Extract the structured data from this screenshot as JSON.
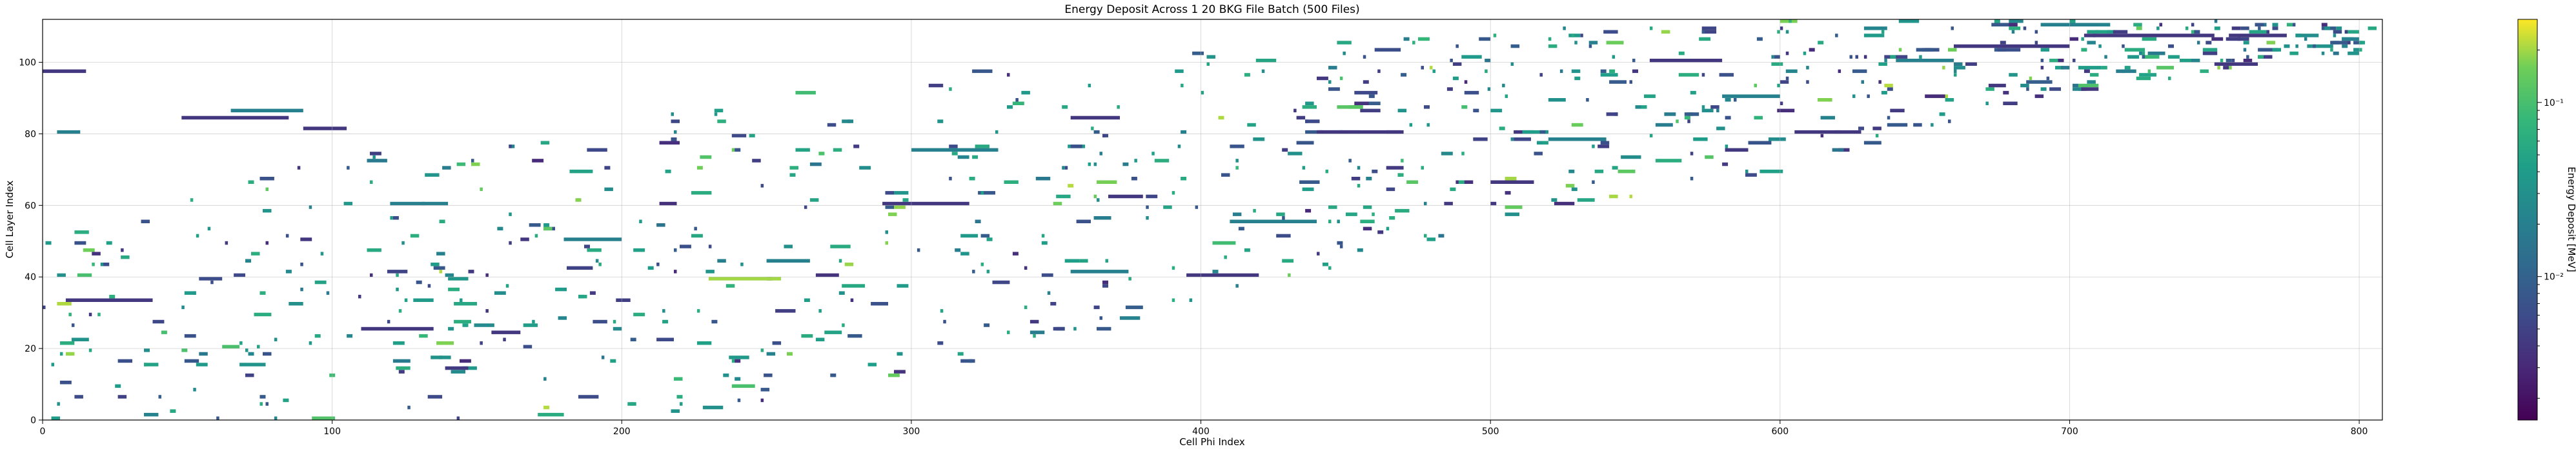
{
  "chart_data": {
    "type": "heatmap",
    "title": "Energy Deposit Across 1 20 BKG File Batch (500 Files)",
    "xlabel": "Cell Phi Index",
    "ylabel": "Cell Layer Index",
    "xlim": [
      0,
      808
    ],
    "ylim": [
      0,
      112
    ],
    "x_ticks": [
      "0",
      "100",
      "200",
      "300",
      "400",
      "500",
      "600",
      "700",
      "800"
    ],
    "y_ticks": [
      "0",
      "20",
      "40",
      "60",
      "80",
      "100"
    ],
    "grid": true,
    "colormap": "viridis",
    "colorbar": {
      "label": "Energy Deposit [MeV]",
      "scale": "log",
      "range": [
        0.0015,
        0.3
      ],
      "ticks": [
        {
          "value": 0.01,
          "label": "10⁻²"
        },
        {
          "value": 0.1,
          "label": "10⁻¹"
        }
      ]
    },
    "band": [
      {
        "x": 0,
        "ymin": 0,
        "ymax": 50
      },
      {
        "x": 100,
        "ymin": 0,
        "ymax": 75
      },
      {
        "x": 200,
        "ymin": 0,
        "ymax": 86
      },
      {
        "x": 300,
        "ymin": 8,
        "ymax": 96
      },
      {
        "x": 400,
        "ymin": 32,
        "ymax": 103
      },
      {
        "x": 500,
        "ymin": 55,
        "ymax": 110
      },
      {
        "x": 600,
        "ymin": 70,
        "ymax": 112
      },
      {
        "x": 700,
        "ymin": 92,
        "ymax": 112
      },
      {
        "x": 808,
        "ymin": 104,
        "ymax": 112
      }
    ],
    "tracks": [
      {
        "x": [
          0,
          15
        ],
        "y": 97,
        "value": 0.004
      },
      {
        "x": [
          5,
          13
        ],
        "y": 80,
        "value": 0.02
      },
      {
        "x": [
          48,
          85
        ],
        "y": 84,
        "value": 0.004
      },
      {
        "x": [
          65,
          90
        ],
        "y": 86,
        "value": 0.02
      },
      {
        "x": [
          90,
          105
        ],
        "y": 81,
        "value": 0.004
      },
      {
        "x": [
          8,
          38
        ],
        "y": 33,
        "value": 0.004
      },
      {
        "x": [
          110,
          135
        ],
        "y": 25,
        "value": 0.004
      },
      {
        "x": [
          155,
          165
        ],
        "y": 24,
        "value": 0.004
      },
      {
        "x": [
          290,
          320
        ],
        "y": 60,
        "value": 0.004
      },
      {
        "x": [
          355,
          372
        ],
        "y": 84,
        "value": 0.004
      },
      {
        "x": [
          368,
          380
        ],
        "y": 62,
        "value": 0.004
      },
      {
        "x": [
          395,
          420
        ],
        "y": 40,
        "value": 0.004
      },
      {
        "x": [
          440,
          470
        ],
        "y": 80,
        "value": 0.004
      },
      {
        "x": [
          500,
          515
        ],
        "y": 66,
        "value": 0.004
      },
      {
        "x": [
          555,
          580
        ],
        "y": 100,
        "value": 0.004
      },
      {
        "x": [
          605,
          628
        ],
        "y": 80,
        "value": 0.004
      },
      {
        "x": [
          660,
          700
        ],
        "y": 104,
        "value": 0.004
      },
      {
        "x": [
          705,
          750
        ],
        "y": 107,
        "value": 0.004
      },
      {
        "x": [
          755,
          775
        ],
        "y": 107,
        "value": 0.004
      },
      {
        "x": [
          750,
          765
        ],
        "y": 99,
        "value": 0.004
      },
      {
        "x": [
          355,
          375
        ],
        "y": 41,
        "value": 0.02
      },
      {
        "x": [
          250,
          265
        ],
        "y": 44,
        "value": 0.02
      },
      {
        "x": [
          230,
          255
        ],
        "y": 39,
        "value": 0.2
      },
      {
        "x": [
          180,
          200
        ],
        "y": 50,
        "value": 0.02
      },
      {
        "x": [
          120,
          140
        ],
        "y": 60,
        "value": 0.02
      },
      {
        "x": [
          300,
          330
        ],
        "y": 75,
        "value": 0.02
      },
      {
        "x": [
          410,
          440
        ],
        "y": 55,
        "value": 0.02
      },
      {
        "x": [
          520,
          540
        ],
        "y": 78,
        "value": 0.02
      },
      {
        "x": [
          580,
          600
        ],
        "y": 90,
        "value": 0.02
      },
      {
        "x": [
          640,
          660
        ],
        "y": 100,
        "value": 0.02
      },
      {
        "x": [
          690,
          710
        ],
        "y": 110,
        "value": 0.02
      }
    ],
    "scatter_seed": 20,
    "scatter_count": 900
  }
}
